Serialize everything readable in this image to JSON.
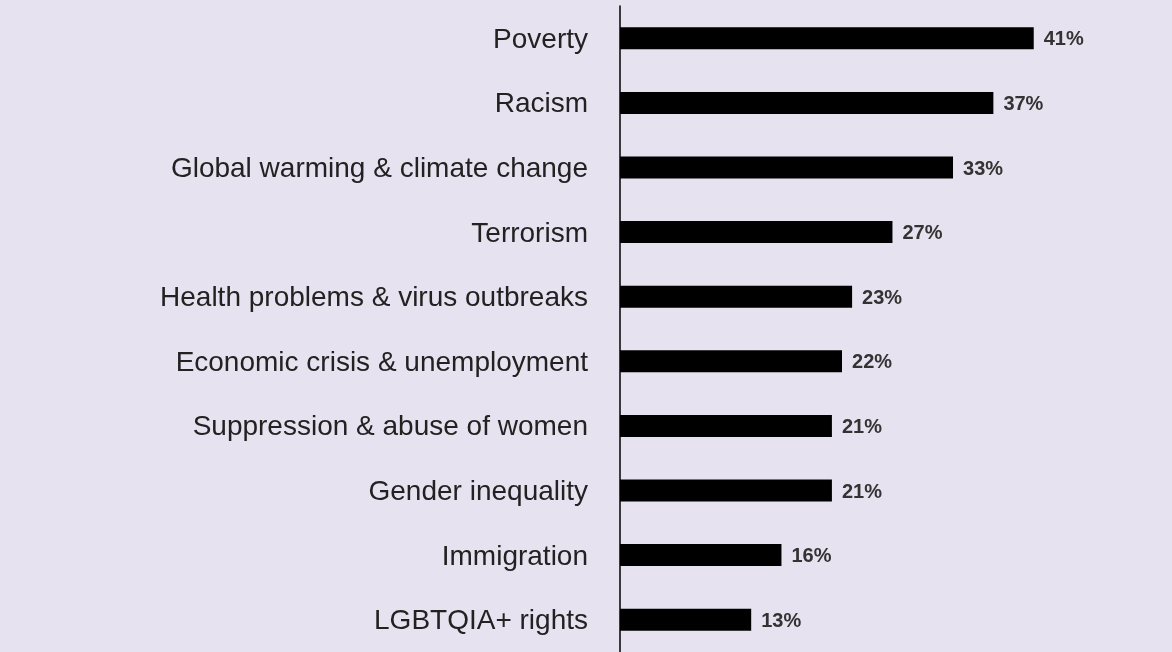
{
  "chart_data": {
    "type": "bar",
    "orientation": "horizontal",
    "categories": [
      "Poverty",
      "Racism",
      "Global warming & climate change",
      "Terrorism",
      "Health problems & virus outbreaks",
      "Economic crisis & unemployment",
      "Suppression & abuse of women",
      "Gender inequality",
      "Immigration",
      "LGBTQIA+ rights"
    ],
    "values": [
      41,
      37,
      33,
      27,
      23,
      22,
      21,
      21,
      16,
      13
    ],
    "value_labels": [
      "41%",
      "37%",
      "33%",
      "27%",
      "23%",
      "22%",
      "21%",
      "21%",
      "16%",
      "13%"
    ],
    "color": "#000000"
  }
}
